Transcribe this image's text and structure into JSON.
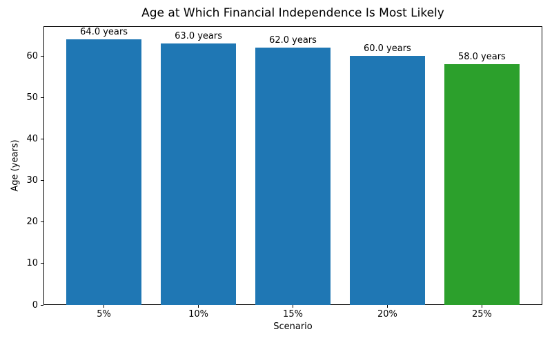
{
  "chart_data": {
    "type": "bar",
    "title": "Age at Which Financial Independence Is Most Likely",
    "xlabel": "Scenario",
    "ylabel": "Age (years)",
    "categories": [
      "5%",
      "10%",
      "15%",
      "20%",
      "25%"
    ],
    "values": [
      64.0,
      63.0,
      62.0,
      60.0,
      58.0
    ],
    "bar_labels": [
      "64.0 years",
      "63.0 years",
      "62.0 years",
      "60.0 years",
      "58.0 years"
    ],
    "bar_colors": [
      "#1f77b4",
      "#1f77b4",
      "#1f77b4",
      "#1f77b4",
      "#2ca02c"
    ],
    "ylim": [
      0,
      67.2
    ],
    "yticks": [
      0,
      10,
      20,
      30,
      40,
      50,
      60
    ],
    "grid": false,
    "legend_position": "none",
    "spine_color": "#000000",
    "text_color": "#000000",
    "background_color": "#ffffff"
  }
}
